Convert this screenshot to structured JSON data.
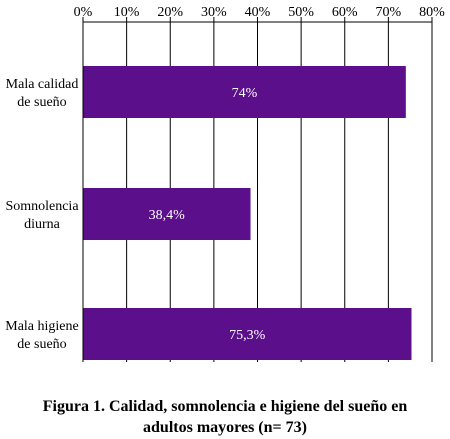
{
  "chart_data": {
    "type": "bar",
    "orientation": "horizontal",
    "categories": [
      [
        "Mala calidad",
        "de sueño"
      ],
      [
        "Somnolencia",
        "diurna"
      ],
      [
        "Mala higiene",
        "de sueño"
      ]
    ],
    "values": [
      74,
      38.4,
      75.3
    ],
    "data_labels": [
      "74%",
      "38,4%",
      "75,3%"
    ],
    "xlim": [
      0,
      80
    ],
    "x_ticks": [
      0,
      10,
      20,
      30,
      40,
      50,
      60,
      70,
      80
    ],
    "x_tick_labels": [
      "0%",
      "10%",
      "20%",
      "30%",
      "40%",
      "50%",
      "60%",
      "70%",
      "80%"
    ],
    "x_axis_position": "top",
    "grid": "vertical",
    "bar_color": "#5c0f8b",
    "title_lines": [
      "Figura 1. Calidad, somnolencia e higiene del sueño en",
      "adultos mayores (n= 73)"
    ]
  }
}
